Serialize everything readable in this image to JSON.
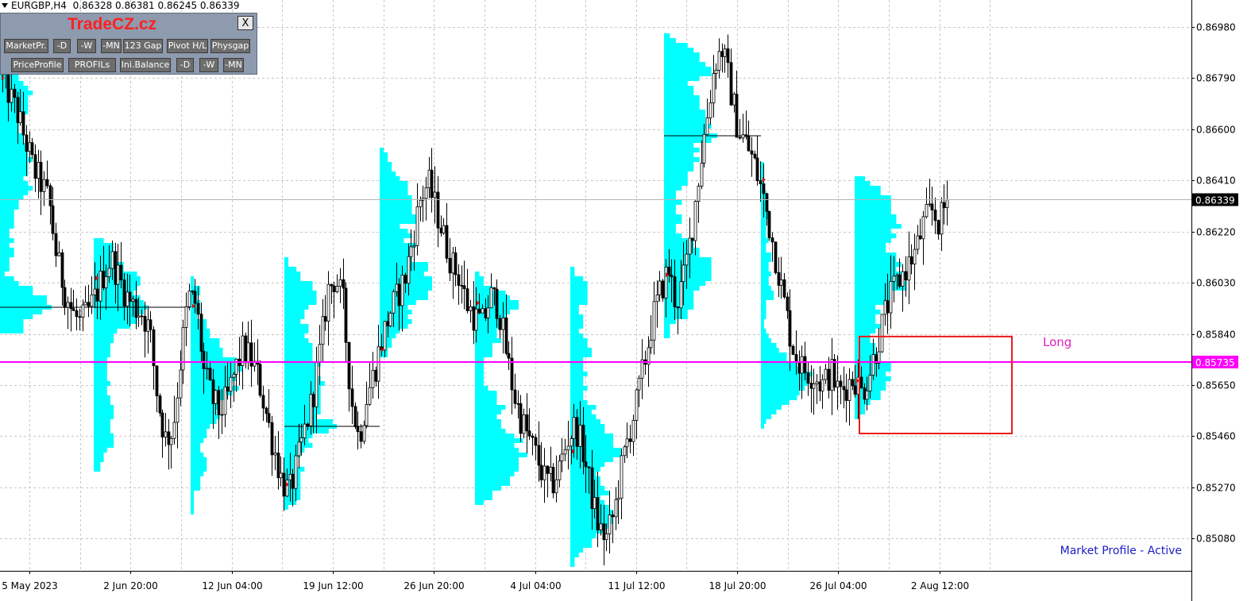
{
  "header": {
    "symbol": "EURGBP,H4",
    "ohlc": "0.86328 0.86381 0.86245 0.86339"
  },
  "panel": {
    "brand": "TradeCZ.cz",
    "close_label": "X",
    "row1": [
      "MarketPr.",
      "-D",
      "-W",
      "-MN",
      "123 Gap",
      "Pivot H/L",
      "Physgap"
    ],
    "row2": [
      "PriceProfile",
      "PROFILs",
      "Ini.Balance",
      "-D",
      "-W",
      "-MN"
    ]
  },
  "status_text": "Market Profile - Active",
  "colors": {
    "profile": "#00ffff",
    "hline": "#ff00ff",
    "candle": "#000000",
    "box": "#ee1c1c",
    "long_label": "#e020c0",
    "grid": "#c8c8c8"
  },
  "chart_data": {
    "type": "candlestick",
    "symbol": "EURGBP",
    "timeframe": "H4",
    "ylim": [
      0.8496,
      0.8708
    ],
    "y_ticks": [
      "0.86980",
      "0.86790",
      "0.86600",
      "0.86410",
      "0.86220",
      "0.86030",
      "0.85840",
      "0.85650",
      "0.85460",
      "0.85270",
      "0.85080"
    ],
    "x_ticks": [
      "5 May 2023",
      "2 Jun 20:00",
      "12 Jun 04:00",
      "19 Jun 12:00",
      "26 Jun 20:00",
      "4 Jul 04:00",
      "11 Jul 12:00",
      "18 Jul 20:00",
      "26 Jul 04:00",
      "2 Aug 12:00"
    ],
    "current_price": "0.86339",
    "level_price": "0.85735",
    "annotations": [
      {
        "text": "Long"
      }
    ],
    "price_path": [
      [
        0,
        0.868
      ],
      [
        1,
        0.8672
      ],
      [
        2,
        0.8665
      ],
      [
        3,
        0.8655
      ],
      [
        4,
        0.8645
      ],
      [
        5,
        0.864
      ],
      [
        6,
        0.8633
      ],
      [
        7,
        0.8612
      ],
      [
        8,
        0.86
      ],
      [
        9,
        0.8592
      ],
      [
        10,
        0.8588
      ],
      [
        11,
        0.8592
      ],
      [
        12,
        0.8598
      ],
      [
        13,
        0.8606
      ],
      [
        14,
        0.8612
      ],
      [
        15,
        0.8605
      ],
      [
        16,
        0.8598
      ],
      [
        17,
        0.8594
      ],
      [
        18,
        0.8592
      ],
      [
        19,
        0.8585
      ],
      [
        20,
        0.856
      ],
      [
        21,
        0.8545
      ],
      [
        22,
        0.8548
      ],
      [
        23,
        0.8575
      ],
      [
        24,
        0.8598
      ],
      [
        25,
        0.8595
      ],
      [
        26,
        0.857
      ],
      [
        27,
        0.856
      ],
      [
        28,
        0.8555
      ],
      [
        29,
        0.856
      ],
      [
        30,
        0.857
      ],
      [
        31,
        0.8578
      ],
      [
        32,
        0.8575
      ],
      [
        33,
        0.8568
      ],
      [
        34,
        0.8555
      ],
      [
        35,
        0.8542
      ],
      [
        36,
        0.853
      ],
      [
        37,
        0.8525
      ],
      [
        38,
        0.8535
      ],
      [
        39,
        0.8548
      ],
      [
        40,
        0.856
      ],
      [
        41,
        0.8578
      ],
      [
        42,
        0.86
      ],
      [
        43,
        0.8605
      ],
      [
        44,
        0.8595
      ],
      [
        45,
        0.856
      ],
      [
        46,
        0.8545
      ],
      [
        47,
        0.856
      ],
      [
        48,
        0.857
      ],
      [
        49,
        0.8582
      ],
      [
        50,
        0.8592
      ],
      [
        51,
        0.8598
      ],
      [
        52,
        0.8605
      ],
      [
        53,
        0.862
      ],
      [
        54,
        0.8635
      ],
      [
        55,
        0.864
      ],
      [
        56,
        0.863
      ],
      [
        57,
        0.862
      ],
      [
        58,
        0.861
      ],
      [
        59,
        0.8605
      ],
      [
        60,
        0.8595
      ],
      [
        61,
        0.859
      ],
      [
        62,
        0.8588
      ],
      [
        63,
        0.8598
      ],
      [
        64,
        0.8595
      ],
      [
        65,
        0.8578
      ],
      [
        66,
        0.8562
      ],
      [
        67,
        0.8552
      ],
      [
        68,
        0.8545
      ],
      [
        69,
        0.8538
      ],
      [
        70,
        0.853
      ],
      [
        71,
        0.8528
      ],
      [
        72,
        0.8535
      ],
      [
        73,
        0.8545
      ],
      [
        74,
        0.855
      ],
      [
        75,
        0.854
      ],
      [
        76,
        0.8525
      ],
      [
        77,
        0.8512
      ],
      [
        78,
        0.8508
      ],
      [
        79,
        0.8518
      ],
      [
        80,
        0.8535
      ],
      [
        81,
        0.8548
      ],
      [
        82,
        0.856
      ],
      [
        83,
        0.8575
      ],
      [
        84,
        0.859
      ],
      [
        85,
        0.86
      ],
      [
        86,
        0.8608
      ],
      [
        87,
        0.8595
      ],
      [
        88,
        0.8605
      ],
      [
        89,
        0.8622
      ],
      [
        90,
        0.8645
      ],
      [
        91,
        0.8665
      ],
      [
        92,
        0.8685
      ],
      [
        93,
        0.869
      ],
      [
        94,
        0.8675
      ],
      [
        95,
        0.866
      ],
      [
        96,
        0.8655
      ],
      [
        97,
        0.8648
      ],
      [
        98,
        0.8638
      ],
      [
        99,
        0.8625
      ],
      [
        100,
        0.861
      ],
      [
        101,
        0.8595
      ],
      [
        102,
        0.858
      ],
      [
        103,
        0.8572
      ],
      [
        104,
        0.857
      ],
      [
        105,
        0.8568
      ],
      [
        106,
        0.8565
      ],
      [
        107,
        0.857
      ],
      [
        108,
        0.8562
      ],
      [
        109,
        0.8565
      ],
      [
        110,
        0.8568
      ],
      [
        111,
        0.8562
      ],
      [
        112,
        0.857
      ],
      [
        113,
        0.858
      ],
      [
        114,
        0.8592
      ],
      [
        115,
        0.86
      ],
      [
        116,
        0.8605
      ],
      [
        117,
        0.861
      ],
      [
        118,
        0.8615
      ],
      [
        119,
        0.8625
      ],
      [
        120,
        0.863
      ],
      [
        121,
        0.8625
      ],
      [
        122,
        0.8634
      ]
    ],
    "candle_count": 320
  }
}
